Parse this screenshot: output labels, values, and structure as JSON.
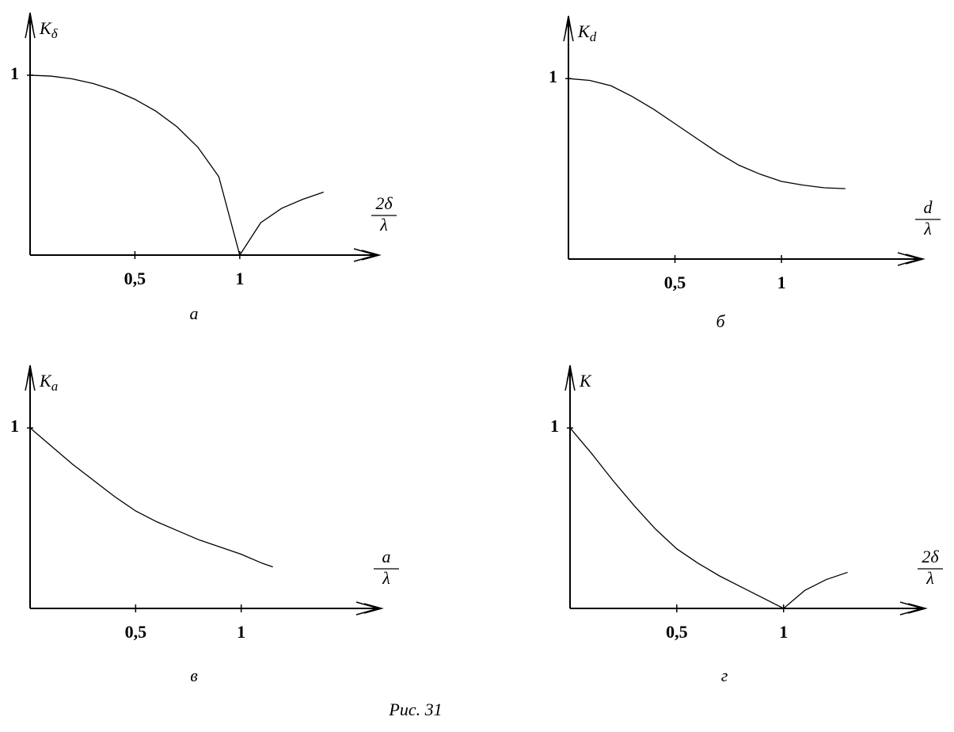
{
  "chart_data": [
    {
      "type": "line",
      "panel_label": "а",
      "ylabel": {
        "main": "K",
        "sub": "δ"
      },
      "xlabel": {
        "numerator": "2δ",
        "denominator": "λ"
      },
      "xlim": [
        0,
        1.65
      ],
      "ylim": [
        0,
        1.33
      ],
      "xticks": [
        {
          "value": 0.5,
          "label": "0,5"
        },
        1
      ],
      "yticks": [
        1
      ],
      "x": [
        0,
        0.1,
        0.2,
        0.3,
        0.4,
        0.5,
        0.6,
        0.7,
        0.8,
        0.9,
        1.0,
        1.1,
        1.2,
        1.3,
        1.4
      ],
      "values": [
        1,
        0.995,
        0.98,
        0.954,
        0.917,
        0.866,
        0.8,
        0.714,
        0.6,
        0.436,
        0,
        0.18,
        0.26,
        0.31,
        0.35
      ],
      "color": "#000000"
    },
    {
      "type": "line",
      "panel_label": "б",
      "ylabel": {
        "main": "K",
        "sub": "d"
      },
      "xlabel": {
        "numerator": "d",
        "denominator": "λ"
      },
      "xlim": [
        0,
        1.65
      ],
      "ylim": [
        0,
        1.33
      ],
      "xticks": [
        {
          "value": 0.5,
          "label": "0,5"
        },
        1
      ],
      "yticks": [
        1
      ],
      "x": [
        0,
        0.1,
        0.2,
        0.3,
        0.4,
        0.5,
        0.6,
        0.7,
        0.8,
        0.9,
        1.0,
        1.1,
        1.2,
        1.3
      ],
      "values": [
        1,
        0.99,
        0.96,
        0.9,
        0.83,
        0.75,
        0.67,
        0.59,
        0.52,
        0.47,
        0.43,
        0.41,
        0.395,
        0.39
      ],
      "color": "#000000"
    },
    {
      "type": "line",
      "panel_label": "в",
      "ylabel": {
        "main": "K",
        "sub": "a"
      },
      "xlabel": {
        "numerator": "a",
        "denominator": "λ"
      },
      "xlim": [
        0,
        1.65
      ],
      "ylim": [
        0,
        1.33
      ],
      "xticks": [
        {
          "value": 0.5,
          "label": "0,5"
        },
        1
      ],
      "yticks": [
        1
      ],
      "x": [
        0,
        0.1,
        0.2,
        0.3,
        0.4,
        0.5,
        0.6,
        0.7,
        0.8,
        0.9,
        1.0,
        1.1,
        1.15
      ],
      "values": [
        1,
        0.9,
        0.8,
        0.71,
        0.62,
        0.54,
        0.48,
        0.43,
        0.38,
        0.34,
        0.3,
        0.25,
        0.23
      ],
      "color": "#000000"
    },
    {
      "type": "line",
      "panel_label": "г",
      "ylabel": {
        "main": "K",
        "sub": ""
      },
      "xlabel": {
        "numerator": "2δ",
        "denominator": "λ"
      },
      "xlim": [
        0,
        1.65
      ],
      "ylim": [
        0,
        1.33
      ],
      "xticks": [
        {
          "value": 0.5,
          "label": "0,5"
        },
        1
      ],
      "yticks": [
        1
      ],
      "x": [
        0,
        0.1,
        0.2,
        0.3,
        0.4,
        0.5,
        0.6,
        0.7,
        0.8,
        0.9,
        1.0,
        1.1,
        1.2,
        1.3
      ],
      "values": [
        1,
        0.86,
        0.71,
        0.57,
        0.44,
        0.33,
        0.25,
        0.18,
        0.12,
        0.06,
        0,
        0.1,
        0.16,
        0.2
      ],
      "color": "#000000"
    }
  ],
  "caption": "Рис. 31"
}
